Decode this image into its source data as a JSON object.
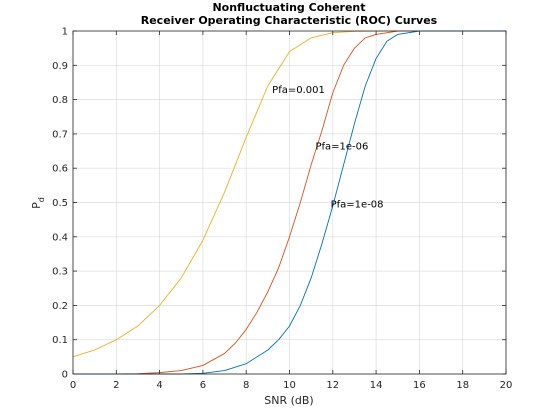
{
  "chart_data": {
    "type": "line",
    "title": [
      "Nonfluctuating Coherent",
      "Receiver Operating Characteristic (ROC) Curves"
    ],
    "xlabel": "SNR (dB)",
    "ylabel": "P",
    "ylabel_subscript": "d",
    "xlim": [
      0,
      20
    ],
    "ylim": [
      0,
      1
    ],
    "x_ticks": [
      "0",
      "2",
      "4",
      "6",
      "8",
      "10",
      "12",
      "14",
      "16",
      "18",
      "20"
    ],
    "y_ticks": [
      "0",
      "0.1",
      "0.2",
      "0.3",
      "0.4",
      "0.5",
      "0.6",
      "0.7",
      "0.8",
      "0.9",
      "1"
    ],
    "grid": true,
    "series": [
      {
        "name": "Pfa=0.001",
        "color": "#EDB120",
        "x": [
          0,
          1,
          2,
          3,
          4,
          5,
          6,
          7,
          8,
          9,
          10,
          11,
          12,
          13,
          14,
          15,
          16,
          17,
          18,
          19,
          20
        ],
        "y": [
          0.05,
          0.07,
          0.1,
          0.14,
          0.2,
          0.28,
          0.39,
          0.53,
          0.69,
          0.84,
          0.94,
          0.98,
          0.995,
          0.999,
          1,
          1,
          1,
          1,
          1,
          1,
          1
        ]
      },
      {
        "name": "Pfa=1e-06",
        "color": "#D95319",
        "x": [
          0,
          2,
          3,
          4,
          5,
          6,
          7,
          7.5,
          8,
          8.5,
          9,
          9.5,
          10,
          10.5,
          11,
          11.5,
          12,
          12.5,
          13,
          13.5,
          14,
          15,
          16,
          18,
          20
        ],
        "y": [
          0,
          0,
          0.001,
          0.004,
          0.01,
          0.025,
          0.06,
          0.09,
          0.13,
          0.18,
          0.24,
          0.31,
          0.4,
          0.5,
          0.61,
          0.71,
          0.82,
          0.9,
          0.95,
          0.98,
          0.99,
          1,
          1,
          1,
          1
        ]
      },
      {
        "name": "Pfa=1e-08",
        "color": "#0072BD",
        "x": [
          0,
          4,
          5,
          6,
          7,
          8,
          9,
          9.5,
          10,
          10.5,
          11,
          11.5,
          12,
          12.5,
          13,
          13.5,
          14,
          14.5,
          15,
          16,
          18,
          20
        ],
        "y": [
          0,
          0,
          0,
          0.002,
          0.01,
          0.03,
          0.07,
          0.1,
          0.14,
          0.2,
          0.28,
          0.38,
          0.49,
          0.61,
          0.73,
          0.84,
          0.92,
          0.97,
          0.99,
          1,
          1,
          1
        ]
      }
    ],
    "annotations": [
      {
        "text": "Pfa=0.001",
        "x": 9.2,
        "y": 0.83
      },
      {
        "text": "Pfa=1e-06",
        "x": 11.2,
        "y": 0.665
      },
      {
        "text": "Pfa=1e-08",
        "x": 11.9,
        "y": 0.495
      }
    ]
  }
}
